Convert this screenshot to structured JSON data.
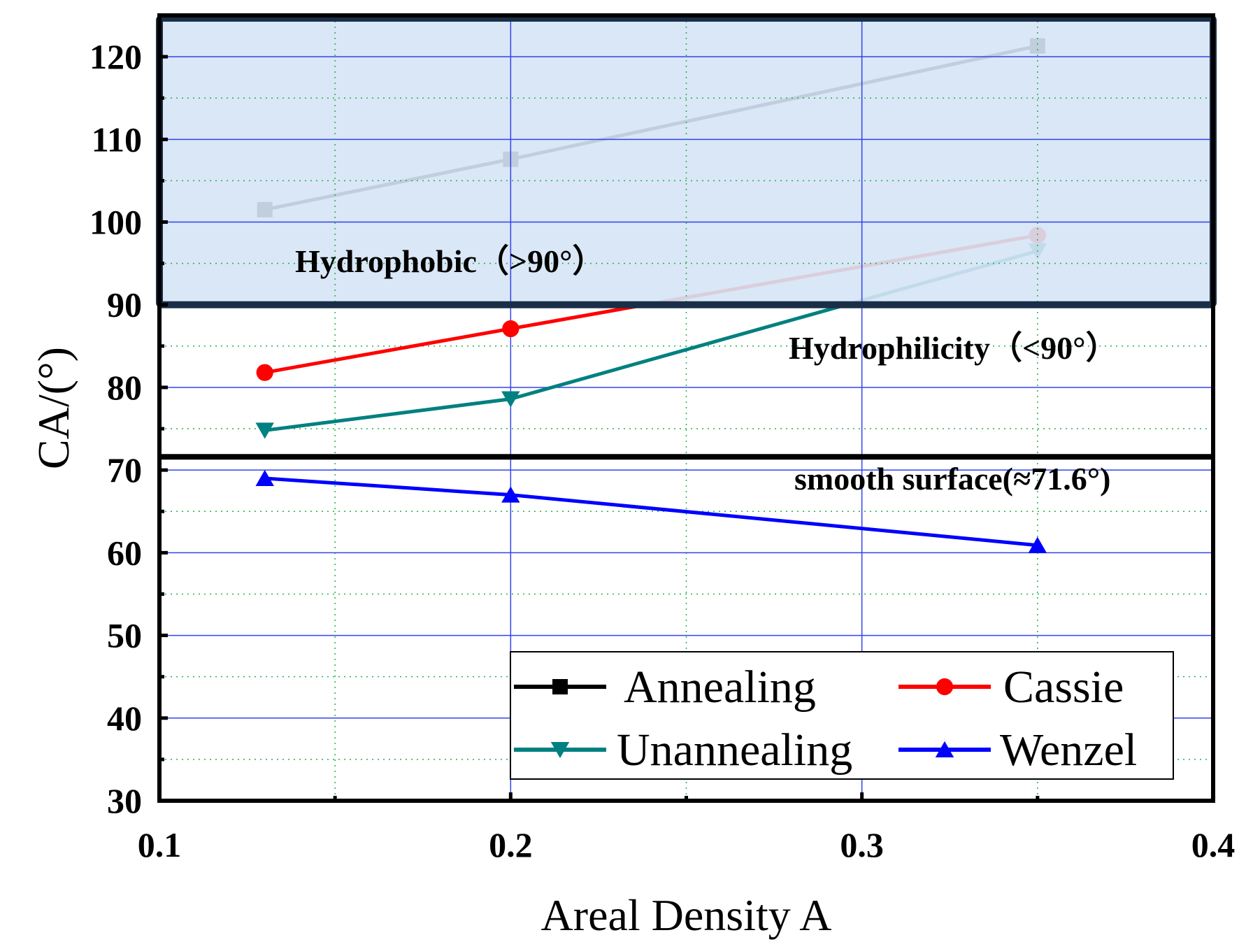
{
  "chart_data": {
    "type": "line",
    "title": "",
    "xlabel": "Areal Density  A",
    "ylabel": "CA/(°)",
    "xlim": [
      0.1,
      0.4
    ],
    "ylim": [
      30,
      125
    ],
    "x_ticks": [
      0.1,
      0.2,
      0.3,
      0.4
    ],
    "x_tick_labels": [
      "0.1",
      "0.2",
      "0.3",
      "0.4"
    ],
    "y_ticks": [
      30,
      40,
      50,
      60,
      70,
      80,
      90,
      100,
      110,
      120
    ],
    "y_tick_labels": [
      "30",
      "40",
      "50",
      "60",
      "70",
      "80",
      "90",
      "100",
      "110",
      "120"
    ],
    "grid": true,
    "legend_position": "bottom-right",
    "series": [
      {
        "name": "Annealing",
        "color": "#000000",
        "marker": "square",
        "x": [
          0.13,
          0.2,
          0.35
        ],
        "y": [
          101.5,
          107.6,
          121.3
        ]
      },
      {
        "name": "Cassie",
        "color": "#ff0000",
        "marker": "circle",
        "x": [
          0.13,
          0.2,
          0.35
        ],
        "y": [
          81.8,
          87.1,
          98.4
        ]
      },
      {
        "name": "Unannealing",
        "color": "#008080",
        "marker": "triangle-down",
        "x": [
          0.13,
          0.2,
          0.35
        ],
        "y": [
          74.8,
          78.6,
          96.5
        ]
      },
      {
        "name": "Wenzel",
        "color": "#0000ff",
        "marker": "triangle-up",
        "x": [
          0.13,
          0.2,
          0.35
        ],
        "y": [
          69.0,
          67.0,
          60.9
        ]
      }
    ],
    "regions": [
      {
        "label": "Hydrophobic（>90°）",
        "y_from": 90,
        "y_to": 125,
        "fill": "#d6e4f5",
        "border": "#1a2f47"
      }
    ],
    "reference_lines": [
      {
        "label": "smooth surface(≈71.6°)",
        "y": 71.6
      }
    ],
    "annotations": [
      {
        "text": "Hydrophilicity（<90°）"
      }
    ]
  }
}
